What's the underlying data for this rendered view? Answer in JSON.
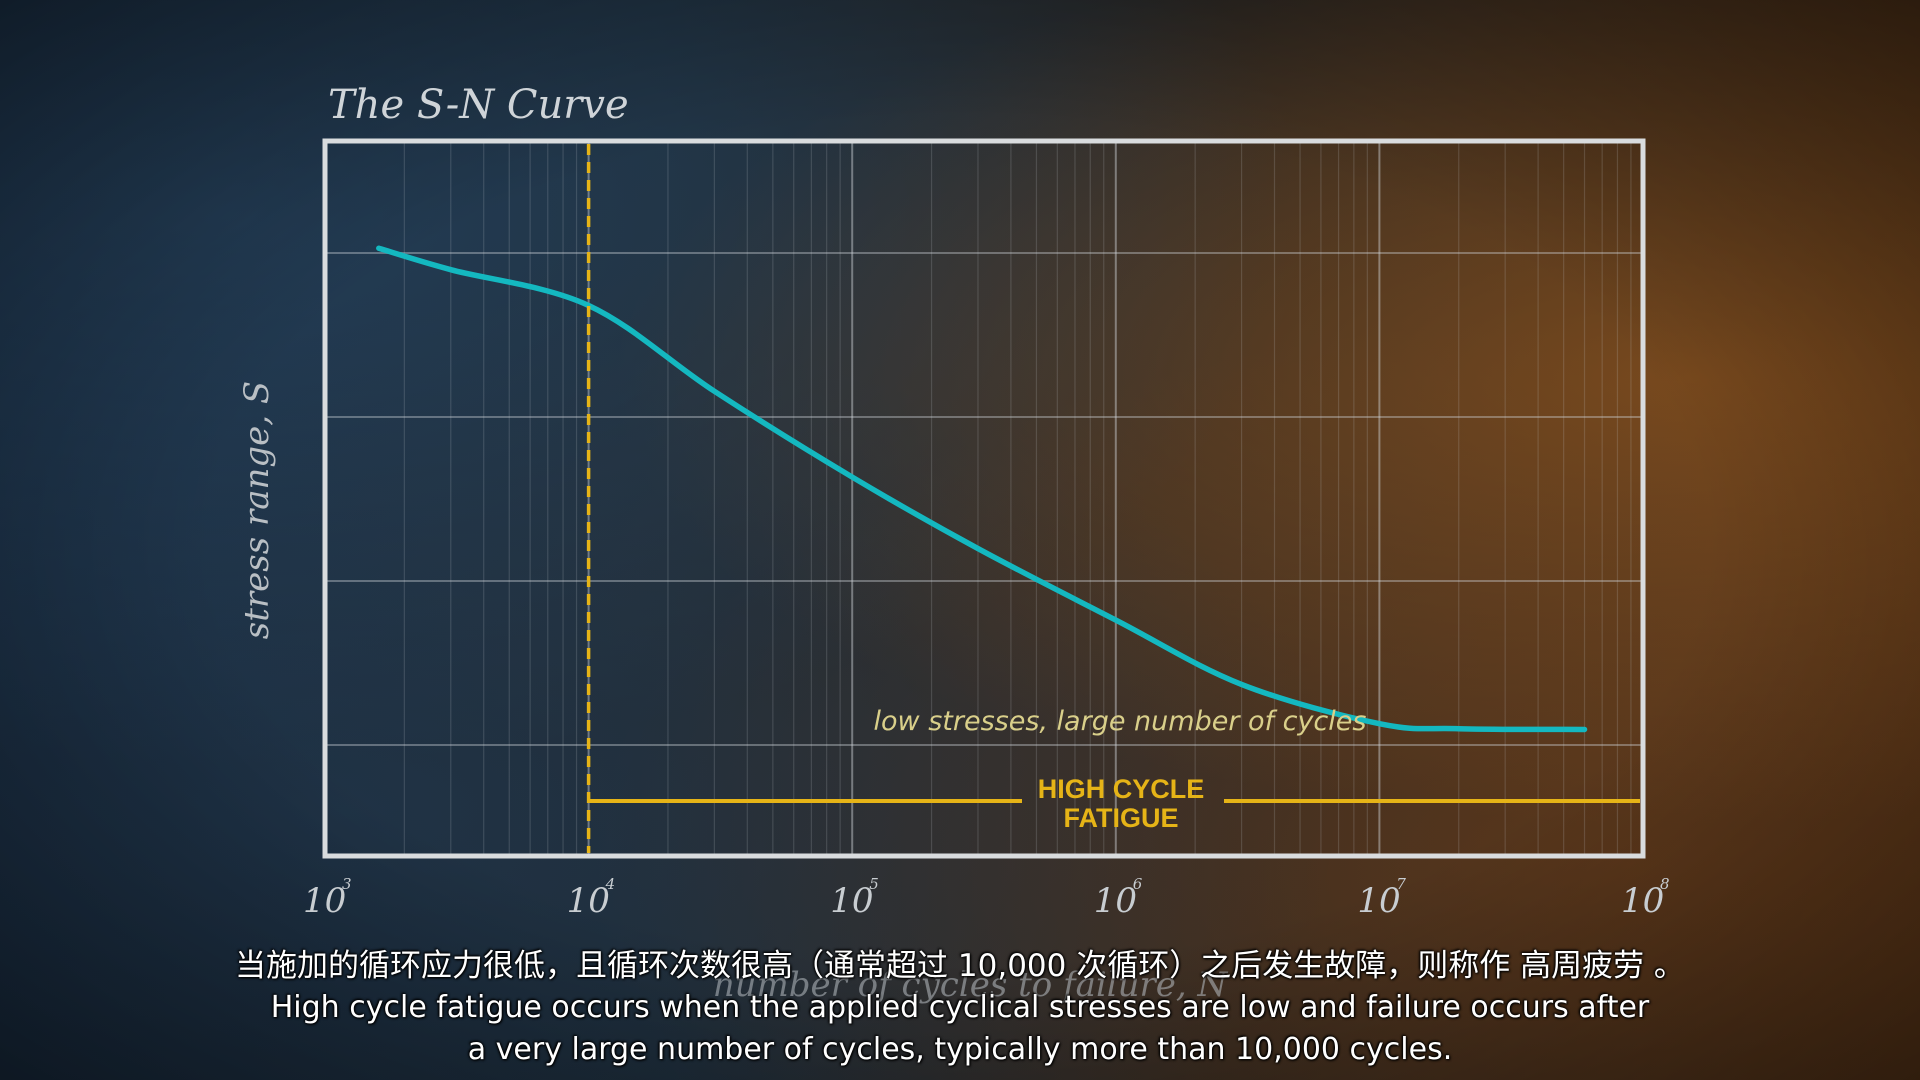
{
  "chart_data": {
    "type": "line",
    "title": "The S-N Curve",
    "xlabel": "number of cycles to failure, N",
    "ylabel": "stress range, S",
    "xscale": "log",
    "xlim": [
      1000,
      100000000
    ],
    "x_ticks": [
      {
        "base": "10",
        "exp": "3"
      },
      {
        "base": "10",
        "exp": "4"
      },
      {
        "base": "10",
        "exp": "5"
      },
      {
        "base": "10",
        "exp": "6"
      },
      {
        "base": "10",
        "exp": "7"
      },
      {
        "base": "10",
        "exp": "8"
      }
    ],
    "grid": true,
    "series": [
      {
        "color": "#14b8c0",
        "x": [
          1600,
          3000,
          10000,
          30000,
          100000,
          300000,
          1000000,
          3000000,
          10000000,
          20000000,
          60000000
        ],
        "y": [
          0.85,
          0.82,
          0.77,
          0.65,
          0.53,
          0.43,
          0.33,
          0.24,
          0.185,
          0.178,
          0.177
        ]
      }
    ],
    "ylim": [
      0,
      1
    ],
    "threshold": {
      "x": 10000,
      "color": "#e6b417",
      "style": "dashed"
    },
    "annotations": {
      "note": "low stresses, large number of cycles",
      "region_label_line1": "HIGH CYCLE",
      "region_label_line2": "FATIGUE",
      "region_color": "#e6b417"
    }
  },
  "subtitles": {
    "chinese": "当施加的循环应力很低，且循环次数很高（通常超过 10,000 次循环）之后发生故障，则称作 高周疲劳 。",
    "english_line1": "High cycle fatigue occurs when the applied cyclical stresses are low and failure occurs after",
    "english_line2": "a very large number of cycles, typically more than 10,000 cycles."
  }
}
